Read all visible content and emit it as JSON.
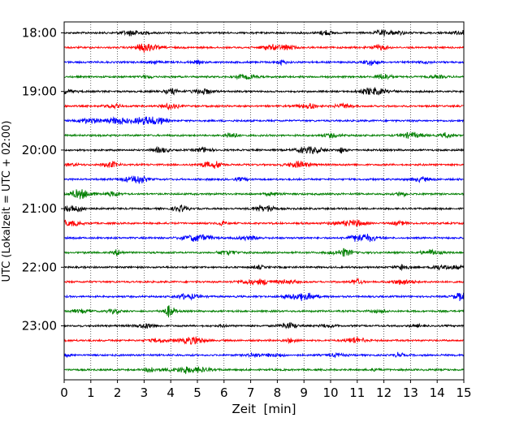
{
  "chart_data": {
    "type": "line",
    "title": "",
    "xlabel": "Zeit  [min]",
    "ylabel": "UTC (Lokalzeit = UTC + 02:00)",
    "xlim": [
      0,
      15
    ],
    "x_ticks": [
      "0",
      "1",
      "2",
      "3",
      "4",
      "5",
      "6",
      "7",
      "8",
      "9",
      "10",
      "11",
      "12",
      "13",
      "14",
      "15"
    ],
    "y_ticks": [
      "18:00",
      "19:00",
      "20:00",
      "21:00",
      "22:00",
      "23:00"
    ],
    "grid": "vertical dotted",
    "trace_colors": [
      "#000000",
      "#ff0000",
      "#0000ff",
      "#007f00"
    ],
    "rows": [
      {
        "start": "18:00",
        "color": "#000000"
      },
      {
        "start": "18:15",
        "color": "#ff0000"
      },
      {
        "start": "18:30",
        "color": "#0000ff"
      },
      {
        "start": "18:45",
        "color": "#007f00"
      },
      {
        "start": "19:00",
        "color": "#000000"
      },
      {
        "start": "19:15",
        "color": "#ff0000"
      },
      {
        "start": "19:30",
        "color": "#0000ff"
      },
      {
        "start": "19:45",
        "color": "#007f00"
      },
      {
        "start": "20:00",
        "color": "#000000"
      },
      {
        "start": "20:15",
        "color": "#ff0000"
      },
      {
        "start": "20:30",
        "color": "#0000ff"
      },
      {
        "start": "20:45",
        "color": "#007f00"
      },
      {
        "start": "21:00",
        "color": "#000000"
      },
      {
        "start": "21:15",
        "color": "#ff0000"
      },
      {
        "start": "21:30",
        "color": "#0000ff"
      },
      {
        "start": "21:45",
        "color": "#007f00"
      },
      {
        "start": "22:00",
        "color": "#000000"
      },
      {
        "start": "22:15",
        "color": "#ff0000"
      },
      {
        "start": "22:30",
        "color": "#0000ff"
      },
      {
        "start": "22:45",
        "color": "#007f00"
      },
      {
        "start": "23:00",
        "color": "#000000"
      },
      {
        "start": "23:15",
        "color": "#ff0000"
      },
      {
        "start": "23:30",
        "color": "#0000ff"
      },
      {
        "start": "23:45",
        "color": "#007f00"
      }
    ]
  }
}
